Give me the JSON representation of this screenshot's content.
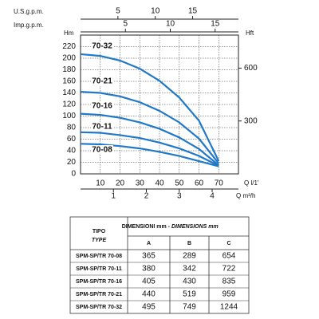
{
  "chart_data": {
    "type": "line",
    "y_label": "Hm",
    "y2_label": "Hft",
    "x_label": "Q l/1'",
    "us_gpm": {
      "label": "U.S.g.p.m.",
      "lim": [
        0,
        21.13
      ],
      "ticks": [
        5,
        10,
        15
      ]
    },
    "imp_gpm": {
      "label": "Imp.g.p.m.",
      "lim": [
        0,
        17.6
      ],
      "ticks": [
        5,
        10,
        15
      ]
    },
    "m3h": {
      "label": "Q m³/h",
      "lim": [
        0,
        4.8
      ],
      "ticks": [
        1,
        2,
        3,
        4
      ]
    },
    "x": [
      0,
      10,
      20,
      30,
      40,
      50,
      60,
      70
    ],
    "series": [
      {
        "name": "70-32",
        "color": "#1f78c8",
        "values": [
          207,
          204,
          196,
          182,
          161,
          132,
          92,
          22
        ]
      },
      {
        "name": "70-21",
        "color": "#1f78c8",
        "values": [
          142,
          140,
          134,
          124,
          109,
          89,
          61,
          18
        ]
      },
      {
        "name": "70-16",
        "color": "#1f78c8",
        "values": [
          104,
          102,
          97,
          89,
          78,
          63,
          43,
          15
        ]
      },
      {
        "name": "70-11",
        "color": "#1f78c8",
        "values": [
          72,
          71,
          67,
          62,
          54,
          44,
          31,
          14
        ]
      },
      {
        "name": "70-08",
        "color": "#1f78c8",
        "values": [
          52,
          51,
          48,
          44,
          38,
          31,
          22,
          13
        ]
      }
    ],
    "xlim": [
      0,
      80
    ],
    "xticks": [
      10,
      20,
      30,
      40,
      50,
      60,
      70
    ],
    "ylim": [
      0,
      240
    ],
    "yticks": [
      0,
      20,
      40,
      60,
      80,
      100,
      120,
      140,
      160,
      180,
      200,
      220
    ],
    "y2lim": [
      0,
      787.4
    ],
    "y2ticks": [
      300,
      600
    ],
    "grid": true
  },
  "table": {
    "type_it": "TIPO",
    "type_en": "TYPE",
    "dims_it": "DIMENSIONI mm -",
    "dims_en": "DIMENSIONS mm",
    "cols": [
      "A",
      "B",
      "C"
    ],
    "rows": [
      [
        "SPM-SP/TR 70-08",
        365,
        289,
        654
      ],
      [
        "SPM-SP/TR 70-11",
        380,
        342,
        722
      ],
      [
        "SPM-SP/TR 70-16",
        405,
        430,
        835
      ],
      [
        "SPM-SP/TR 70-21",
        440,
        519,
        959
      ],
      [
        "SPM-SP/TR 70-32",
        495,
        749,
        1244
      ]
    ]
  }
}
